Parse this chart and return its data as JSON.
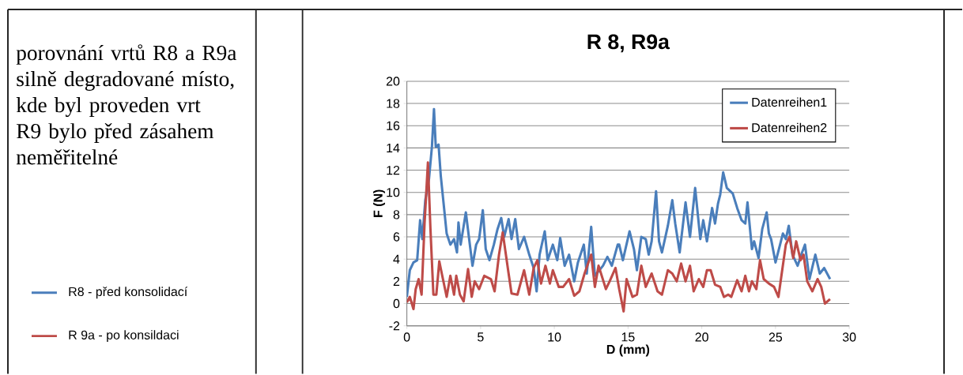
{
  "chart_data": {
    "type": "line",
    "title": "R 8, R9a",
    "xlabel": "D (mm)",
    "ylabel": "F (N)",
    "xlim": [
      0,
      30
    ],
    "ylim": [
      -2,
      20
    ],
    "xticks": [
      0,
      5,
      10,
      15,
      20,
      25,
      30
    ],
    "yticks": [
      -2,
      0,
      2,
      4,
      6,
      8,
      10,
      12,
      14,
      16,
      18,
      20
    ],
    "grid": "y",
    "legend": "top right",
    "line_style": "solid",
    "annotations": [
      "porovnání vrtů R8 a R9a",
      "silně degradované místo, kde byl proveden vrt R9 bylo před zásahem neměřitelné",
      "R8 -  před konsolidací",
      "R 9a - po konsildaci"
    ],
    "series": [
      {
        "name": "Datenreihen1",
        "color": "#4a7ebb",
        "x": [
          0,
          0.2,
          0.45,
          0.7,
          0.9,
          1.05,
          1.25,
          1.5,
          1.7,
          1.84,
          1.96,
          2.15,
          2.3,
          2.7,
          2.95,
          3.2,
          3.4,
          3.5,
          3.65,
          4.0,
          4.45,
          4.7,
          4.9,
          5.15,
          5.35,
          5.6,
          5.9,
          6.15,
          6.4,
          6.6,
          6.9,
          7.1,
          7.35,
          7.6,
          7.95,
          8.3,
          8.6,
          8.8,
          9.0,
          9.35,
          9.55,
          9.9,
          10.2,
          10.4,
          10.7,
          11.0,
          11.35,
          11.6,
          12.0,
          12.2,
          12.5,
          12.75,
          13.3,
          13.6,
          13.9,
          14.3,
          14.4,
          14.65,
          15.1,
          15.4,
          15.6,
          15.9,
          16.2,
          16.4,
          16.6,
          16.9,
          17.1,
          17.3,
          17.7,
          18.0,
          18.2,
          18.5,
          18.9,
          19.2,
          19.55,
          19.9,
          20.1,
          20.35,
          20.7,
          20.9,
          21.1,
          21.25,
          21.45,
          21.7,
          22.1,
          22.4,
          22.7,
          22.95,
          23.1,
          23.4,
          23.55,
          23.85,
          24.1,
          24.4,
          24.55,
          24.7,
          25.0,
          25.5,
          25.7,
          25.9,
          26.15,
          26.5,
          26.8,
          27.0,
          27.3,
          27.7,
          28.0,
          28.3,
          28.7
        ],
        "values": [
          0.6,
          3.0,
          3.7,
          3.9,
          7.5,
          5.8,
          9.3,
          11.2,
          14.1,
          17.5,
          14.1,
          14.3,
          11.5,
          6.3,
          5.3,
          5.8,
          4.6,
          7.3,
          5.3,
          8.2,
          3.4,
          5.3,
          5.8,
          8.4,
          4.9,
          3.9,
          5.3,
          6.7,
          7.7,
          6.0,
          7.6,
          5.8,
          7.6,
          4.9,
          6.0,
          4.4,
          3.2,
          1.1,
          4.4,
          6.5,
          3.9,
          5.3,
          3.9,
          5.9,
          3.4,
          4.4,
          2.0,
          3.7,
          5.3,
          2.7,
          6.9,
          2.5,
          3.4,
          4.2,
          3.4,
          5.3,
          5.3,
          3.9,
          6.5,
          4.9,
          3.0,
          6.0,
          5.8,
          4.4,
          5.6,
          10.1,
          5.6,
          4.6,
          7.0,
          9.3,
          7.2,
          4.6,
          9.1,
          6.0,
          10.4,
          5.8,
          7.5,
          5.6,
          8.6,
          7.2,
          9.0,
          9.8,
          11.8,
          10.4,
          9.9,
          8.6,
          7.5,
          7.2,
          9.1,
          4.9,
          5.6,
          4.1,
          6.7,
          8.2,
          6.3,
          5.8,
          3.7,
          6.3,
          5.8,
          7.0,
          4.4,
          3.4,
          4.6,
          5.3,
          2.2,
          4.4,
          2.7,
          3.2,
          2.2
        ]
      },
      {
        "name": "Datenreihen2",
        "color": "#be4b48",
        "x": [
          0,
          0.2,
          0.45,
          0.6,
          0.8,
          1.0,
          1.2,
          1.43,
          1.6,
          1.8,
          2.0,
          2.2,
          2.4,
          2.7,
          2.95,
          3.2,
          3.35,
          3.6,
          3.85,
          4.15,
          4.4,
          4.6,
          4.9,
          5.25,
          5.7,
          5.95,
          6.25,
          6.5,
          6.9,
          7.1,
          7.5,
          7.95,
          8.3,
          8.6,
          8.85,
          9.1,
          9.4,
          9.7,
          9.9,
          10.3,
          10.6,
          11.0,
          11.35,
          11.7,
          12.05,
          12.5,
          12.75,
          13.0,
          13.5,
          13.75,
          14.15,
          14.4,
          14.7,
          14.9,
          15.3,
          15.6,
          15.9,
          16.2,
          16.6,
          17.0,
          17.3,
          17.7,
          18.0,
          18.3,
          18.6,
          18.9,
          19.2,
          19.45,
          19.8,
          20.1,
          20.35,
          20.6,
          20.9,
          21.25,
          21.5,
          21.8,
          22.0,
          22.4,
          22.7,
          22.95,
          23.2,
          23.4,
          23.7,
          23.95,
          24.2,
          24.55,
          24.9,
          25.2,
          25.4,
          25.7,
          25.95,
          26.2,
          26.4,
          26.7,
          26.9,
          27.15,
          27.5,
          27.85,
          28.1,
          28.35,
          28.7
        ],
        "values": [
          0.1,
          0.6,
          -0.5,
          1.3,
          2.2,
          0.8,
          7.2,
          12.7,
          6.7,
          0.8,
          0.8,
          3.8,
          2.5,
          0.6,
          2.5,
          0.8,
          2.5,
          0.8,
          0.2,
          3.1,
          0.6,
          2.0,
          1.3,
          2.5,
          2.2,
          1.1,
          4.4,
          6.4,
          2.7,
          0.9,
          0.8,
          3.0,
          0.8,
          3.2,
          3.9,
          1.8,
          3.4,
          1.8,
          3.0,
          1.5,
          1.5,
          2.2,
          0.7,
          1.1,
          2.7,
          4.4,
          1.5,
          3.4,
          1.3,
          2.0,
          3.2,
          1.3,
          -0.7,
          2.2,
          0.6,
          0.8,
          3.4,
          1.5,
          2.7,
          1.1,
          0.8,
          3.0,
          2.7,
          2.0,
          3.6,
          2.0,
          3.4,
          1.1,
          2.2,
          1.5,
          3.0,
          3.0,
          1.7,
          1.5,
          0.6,
          0.8,
          0.6,
          2.1,
          1.1,
          2.5,
          1.1,
          2.0,
          1.3,
          3.9,
          2.2,
          1.8,
          1.5,
          0.6,
          2.5,
          5.3,
          6.0,
          4.1,
          5.6,
          3.9,
          4.4,
          2.0,
          1.1,
          2.2,
          1.5,
          0,
          0.4
        ]
      }
    ]
  }
}
